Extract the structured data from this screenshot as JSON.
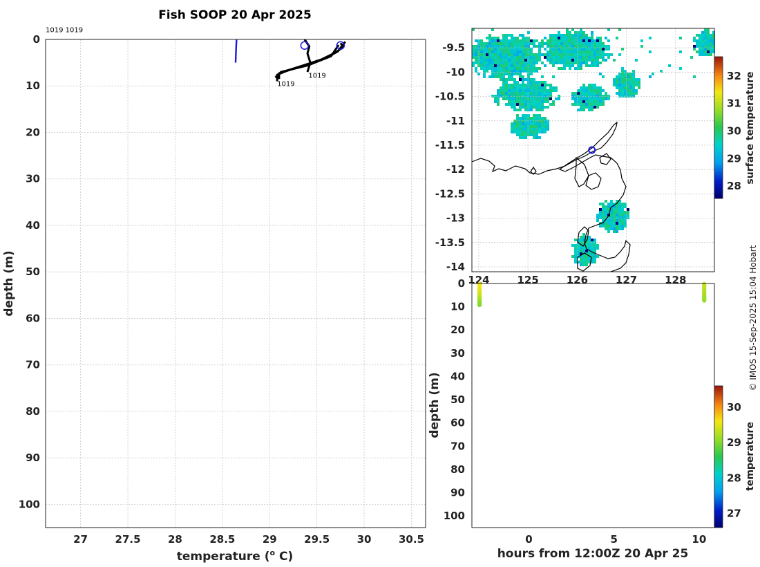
{
  "title": "Fish SOOP 20 Apr 2025",
  "credit": "© IMOS 15-Sep-2025 15:04 Hobart",
  "chart_data": [
    {
      "type": "line",
      "name": "temperature-profile",
      "xlabel": "temperature (",
      "xlabel_sup": "o",
      "xlabel_end": " C)",
      "ylabel": "depth (m)",
      "xlim": [
        26.63,
        30.65
      ],
      "ylim": [
        0,
        105
      ],
      "xticks": [
        27,
        27.5,
        28,
        28.5,
        29,
        29.5,
        30,
        30.5
      ],
      "xtick_labels": [
        "27",
        "27.5",
        "28",
        "28.5",
        "29",
        "29.5",
        "30",
        "30.5"
      ],
      "yticks": [
        0,
        10,
        20,
        30,
        40,
        50,
        60,
        70,
        80,
        90,
        100
      ],
      "ytick_labels": [
        "0",
        "10",
        "20",
        "30",
        "40",
        "50",
        "60",
        "70",
        "80",
        "90",
        "100"
      ],
      "grid": true,
      "annotations": [
        {
          "text": "1019 1019",
          "x": 26.63,
          "y": -2
        },
        {
          "text": "1019",
          "x": 29.41,
          "y": 7.8
        },
        {
          "text": "1019",
          "x": 29.08,
          "y": 9.6
        }
      ],
      "series": [
        {
          "name": "blue profile",
          "color": "#1a1adb",
          "points": [
            [
              28.65,
              0
            ],
            [
              28.645,
              2
            ],
            [
              28.64,
              5
            ]
          ]
        },
        {
          "name": "black profiles",
          "color": "#000000",
          "traces": [
            [
              [
                29.37,
                0
              ],
              [
                29.42,
                1.5
              ],
              [
                29.4,
                3
              ],
              [
                29.43,
                5
              ],
              [
                29.4,
                7
              ]
            ],
            [
              [
                29.75,
                0.8
              ],
              [
                29.78,
                1.6
              ],
              [
                29.7,
                2.8
              ],
              [
                29.6,
                4
              ],
              [
                29.45,
                5
              ],
              [
                29.2,
                6.6
              ],
              [
                29.08,
                7.6
              ],
              [
                29.08,
                9
              ]
            ],
            [
              [
                29.8,
                0.5
              ],
              [
                29.72,
                2.6
              ],
              [
                29.55,
                4.3
              ],
              [
                29.3,
                6
              ],
              [
                29.1,
                7.3
              ],
              [
                29.1,
                8.5
              ]
            ],
            [
              [
                29.73,
                1.2
              ],
              [
                29.65,
                3.6
              ],
              [
                29.4,
                5.6
              ],
              [
                29.12,
                7
              ],
              [
                29.06,
                8.2
              ]
            ]
          ]
        },
        {
          "name": "start markers",
          "color": "#1a1adb",
          "marker": "circle",
          "points": [
            [
              29.37,
              1.3
            ],
            [
              29.75,
              1.3
            ]
          ]
        }
      ]
    },
    {
      "type": "heatmap",
      "name": "surface-temperature-map",
      "colorbar_label": "surface temperature",
      "colorbar_ticks": [
        28,
        29,
        30,
        31,
        32
      ],
      "colorbar_tick_labels": [
        "28",
        "29",
        "30",
        "31",
        "32"
      ],
      "colorbar_range": [
        27.55,
        32.7
      ],
      "xlim": [
        123.86,
        128.79
      ],
      "ylim": [
        -14.1,
        -9.1
      ],
      "yticks": [
        -9.5,
        -10,
        -10.5,
        -11,
        -11.5,
        -12,
        -12.5,
        -13,
        -13.5,
        -14
      ],
      "ytick_labels": [
        "-9.5",
        "-10",
        "-10.5",
        "-11",
        "-11.5",
        "-12",
        "-12.5",
        "-13",
        "-13.5",
        "-14"
      ],
      "xticks": [
        124,
        125,
        126,
        127,
        128
      ],
      "xtick_labels": [
        "124",
        "125",
        "126",
        "127",
        "128"
      ],
      "grid": true,
      "vessel_marker": {
        "lon": 126.3,
        "lat": -11.6,
        "color": "#1a1adb"
      }
    },
    {
      "type": "scatter",
      "name": "depth-time-section",
      "xlabel": "hours from 12:00Z 20 Apr 25",
      "ylabel": "depth (m)",
      "xlim": [
        -3.35,
        10.9
      ],
      "ylim": [
        0,
        105
      ],
      "xticks": [
        0,
        5,
        10
      ],
      "xtick_labels": [
        "0",
        "5",
        "10"
      ],
      "yticks": [
        0,
        10,
        20,
        30,
        40,
        50,
        60,
        70,
        80,
        90,
        100
      ],
      "ytick_labels": [
        "0",
        "10",
        "20",
        "30",
        "40",
        "50",
        "60",
        "70",
        "80",
        "90",
        "100"
      ],
      "colorbar_label": "temperature",
      "colorbar_ticks": [
        27,
        28,
        29,
        30
      ],
      "colorbar_tick_labels": [
        "27",
        "28",
        "29",
        "30"
      ],
      "colorbar_range": [
        26.6,
        30.6
      ],
      "series": [
        {
          "name": "cast 1",
          "x": -2.9,
          "points": [
            [
              0.3,
              29.6
            ],
            [
              1.2,
              29.6
            ],
            [
              2.1,
              29.55
            ],
            [
              3.0,
              29.5
            ],
            [
              3.9,
              29.45
            ],
            [
              4.8,
              29.4
            ],
            [
              5.7,
              29.3
            ],
            [
              6.6,
              29.2
            ],
            [
              7.5,
              29.1
            ],
            [
              8.4,
              29.05
            ],
            [
              9.2,
              29.0
            ]
          ]
        },
        {
          "name": "cast 2",
          "x": 10.3,
          "points": [
            [
              0.3,
              29.3
            ],
            [
              1.2,
              29.3
            ],
            [
              2.1,
              29.3
            ],
            [
              3.0,
              29.25
            ],
            [
              3.9,
              29.2
            ],
            [
              4.8,
              29.2
            ],
            [
              5.7,
              29.15
            ],
            [
              6.6,
              29.1
            ],
            [
              7.3,
              29.1
            ]
          ]
        }
      ]
    }
  ]
}
